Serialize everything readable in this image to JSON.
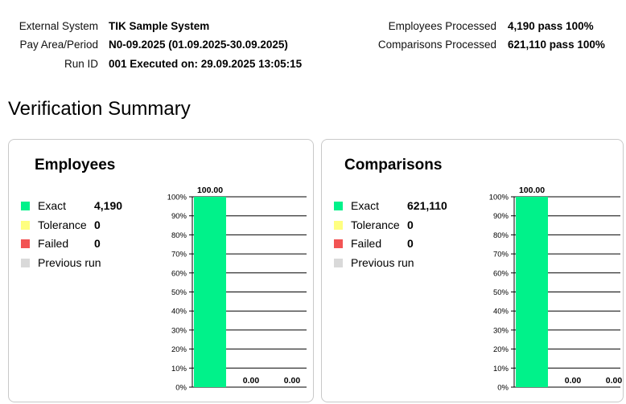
{
  "header": {
    "left": [
      {
        "label": "External System",
        "value": "TIK Sample System"
      },
      {
        "label": "Pay Area/Period",
        "value": "N0-09.2025 (01.09.2025-30.09.2025)"
      },
      {
        "label": "Run ID",
        "value": "001 Executed on: 29.09.2025 13:05:15"
      }
    ],
    "right": [
      {
        "label": "Employees Processed",
        "value": "4,190 pass 100%"
      },
      {
        "label": "Comparisons Processed",
        "value": "621,110 pass 100%"
      }
    ]
  },
  "page_title": "Verification Summary",
  "colors": {
    "exact": "#00f28a",
    "tolerance": "#ffff80",
    "failed": "#f25454",
    "previous": "#d9d9d9"
  },
  "cards": [
    {
      "title": "Employees",
      "legend": [
        {
          "label": "Exact",
          "value": "4,190",
          "color": "#00f28a"
        },
        {
          "label": "Tolerance",
          "value": "0",
          "color": "#ffff80"
        },
        {
          "label": "Failed",
          "value": "0",
          "color": "#f25454"
        },
        {
          "label": "Previous run",
          "value": "",
          "color": "#d9d9d9"
        }
      ]
    },
    {
      "title": "Comparisons",
      "legend": [
        {
          "label": "Exact",
          "value": "621,110",
          "color": "#00f28a"
        },
        {
          "label": "Tolerance",
          "value": "0",
          "color": "#ffff80"
        },
        {
          "label": "Failed",
          "value": "0",
          "color": "#f25454"
        },
        {
          "label": "Previous run",
          "value": "",
          "color": "#d9d9d9"
        }
      ]
    }
  ],
  "chart_data": [
    {
      "type": "bar",
      "title": "",
      "categories": [
        "",
        "",
        ""
      ],
      "values": [
        100,
        0,
        0
      ],
      "value_labels": [
        "100.00",
        "0.00",
        "0.00"
      ],
      "bar_colors": [
        "#00f28a",
        "#ffff80",
        "#f25454"
      ],
      "ylim": [
        0,
        100
      ],
      "yticks": [
        "0%",
        "10%",
        "20%",
        "30%",
        "40%",
        "50%",
        "60%",
        "70%",
        "80%",
        "90%",
        "100%"
      ],
      "grid": true
    },
    {
      "type": "bar",
      "title": "",
      "categories": [
        "",
        "",
        ""
      ],
      "values": [
        100,
        0,
        0
      ],
      "value_labels": [
        "100.00",
        "0.00",
        "0.00"
      ],
      "bar_colors": [
        "#00f28a",
        "#ffff80",
        "#f25454"
      ],
      "ylim": [
        0,
        100
      ],
      "yticks": [
        "0%",
        "10%",
        "20%",
        "30%",
        "40%",
        "50%",
        "60%",
        "70%",
        "80%",
        "90%",
        "100%"
      ],
      "grid": true
    }
  ]
}
